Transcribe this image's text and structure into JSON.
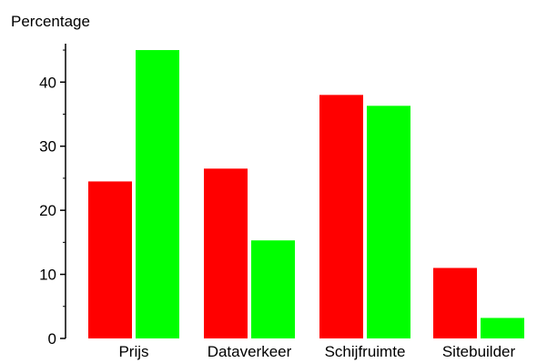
{
  "chart_data": {
    "type": "bar",
    "title": "",
    "xlabel": "",
    "ylabel": "Percentage",
    "categories": [
      "Prijs",
      "Dataverkeer",
      "Schijfruimte",
      "Sitebuilder"
    ],
    "series": [
      {
        "color": "#ff0000",
        "values": [
          24.5,
          26.5,
          38.0,
          11.0
        ]
      },
      {
        "color": "#00ff00",
        "values": [
          45.0,
          15.3,
          36.3,
          3.2
        ]
      }
    ],
    "ylim": [
      0,
      46
    ],
    "yticks": [
      0,
      10,
      20,
      30,
      40
    ],
    "ytick_labels": [
      "0",
      "10",
      "20",
      "30",
      "40"
    ],
    "grid": false,
    "legend": "none"
  }
}
